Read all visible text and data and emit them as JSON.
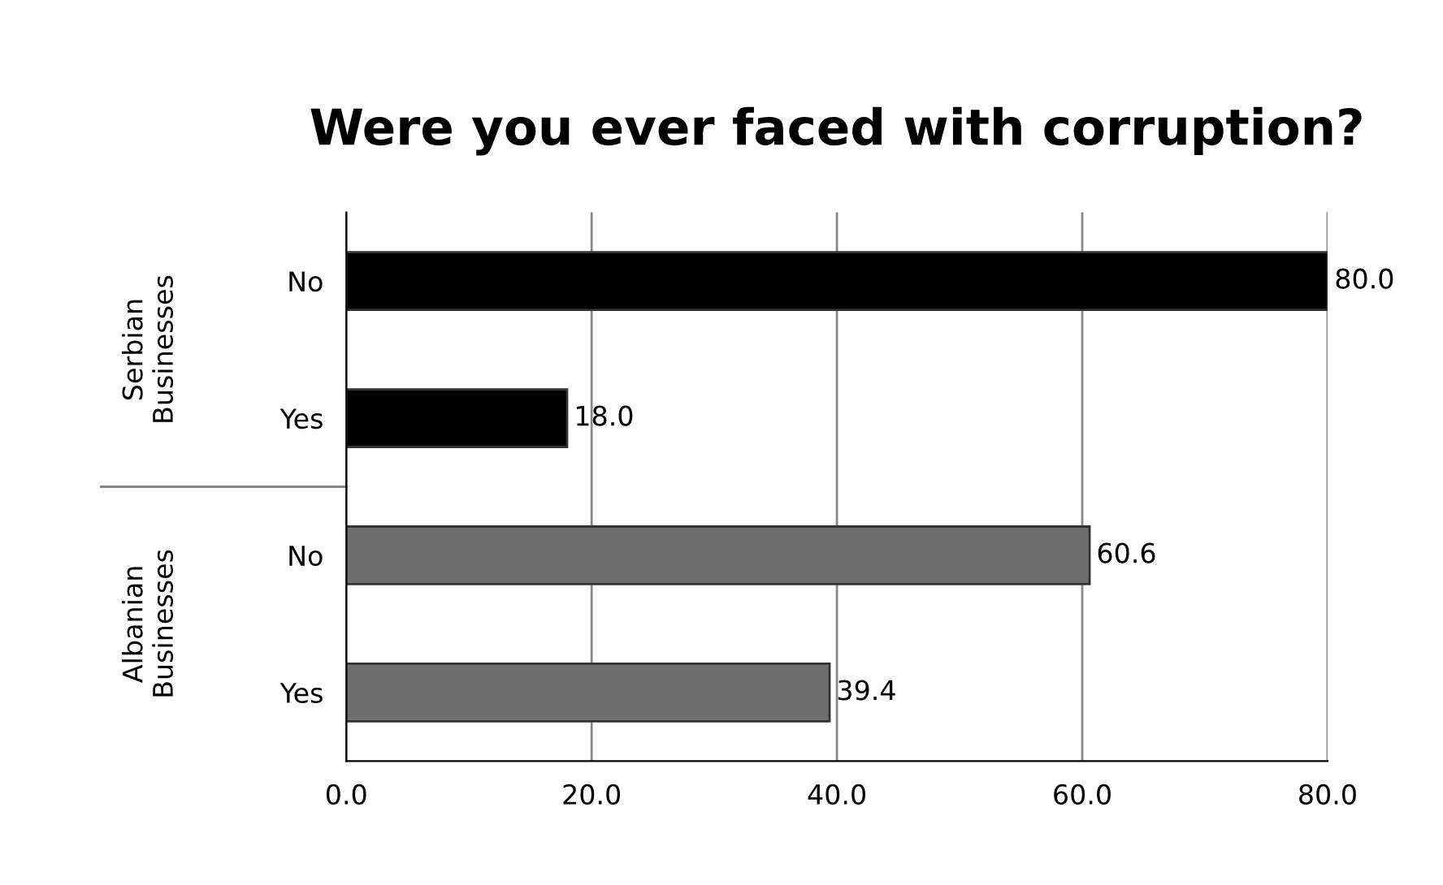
{
  "chart_data": {
    "type": "bar",
    "orientation": "horizontal",
    "title": "Were you ever faced with corruption?",
    "categories": [
      "No",
      "Yes",
      "No",
      "Yes"
    ],
    "values": [
      80.0,
      18.0,
      60.6,
      39.4
    ],
    "colors": [
      "#000000",
      "#000000",
      "#6e6e6e",
      "#6e6e6e"
    ],
    "value_labels": [
      "80.0",
      "18.0",
      "60.6",
      "39.4"
    ],
    "xlim": [
      0,
      80
    ],
    "xticks": [
      {
        "value": 0,
        "label": "0.0"
      },
      {
        "value": 20,
        "label": "20.0"
      },
      {
        "value": 40,
        "label": "40.0"
      },
      {
        "value": 60,
        "label": "60.0"
      },
      {
        "value": 80,
        "label": "80.0"
      }
    ],
    "grid": "x",
    "annotations": [
      "Serbian\nBusinesses",
      "Albanian\nBusinesses"
    ]
  }
}
